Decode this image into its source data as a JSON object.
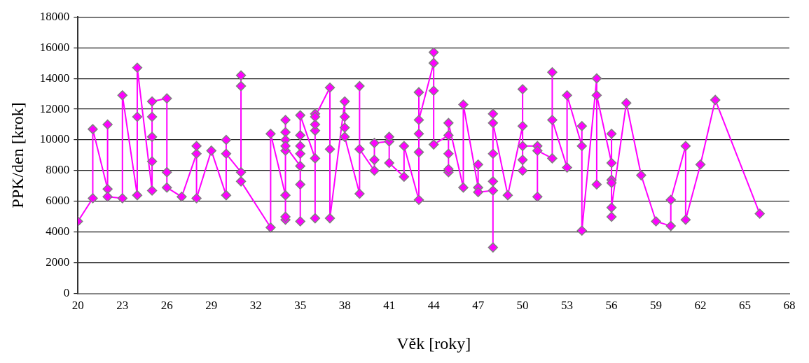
{
  "chart_data": {
    "type": "line",
    "xlabel": "Věk [roky]",
    "ylabel": "PPK/den [krok]",
    "xlim": [
      20,
      68
    ],
    "xticks": [
      20,
      23,
      26,
      29,
      32,
      35,
      38,
      41,
      44,
      47,
      50,
      53,
      56,
      59,
      62,
      65,
      68
    ],
    "ylim": [
      0,
      18000
    ],
    "yticks": [
      0,
      2000,
      4000,
      6000,
      8000,
      10000,
      12000,
      14000,
      16000,
      18000
    ],
    "grid": "y",
    "legend": false,
    "marker": "diamond",
    "line_style": "solid",
    "series": [
      {
        "color": "#ff00ff",
        "x": [
          20,
          21,
          21,
          22,
          22,
          22,
          23,
          23,
          24,
          24,
          24,
          25,
          25,
          25,
          25,
          25,
          26,
          26,
          26,
          27,
          28,
          28,
          28,
          29,
          30,
          30,
          30,
          31,
          31,
          31,
          31,
          33,
          33,
          34,
          34,
          34,
          34,
          34,
          34,
          34,
          34,
          35,
          35,
          35,
          35,
          35,
          35,
          35,
          36,
          36,
          36,
          36,
          36,
          36,
          37,
          37,
          37,
          38,
          38,
          38,
          38,
          39,
          39,
          39,
          40,
          40,
          40,
          41,
          41,
          41,
          42,
          42,
          43,
          43,
          43,
          43,
          43,
          44,
          44,
          44,
          44,
          45,
          45,
          45,
          45,
          45,
          46,
          46,
          47,
          47,
          47,
          48,
          48,
          48,
          48,
          48,
          48,
          49,
          50,
          50,
          50,
          50,
          50,
          51,
          51,
          51,
          52,
          52,
          52,
          53,
          53,
          54,
          54,
          54,
          55,
          55,
          55,
          56,
          56,
          56,
          56,
          56,
          56,
          57,
          58,
          59,
          60,
          60,
          61,
          61,
          62,
          63,
          66
        ],
        "values": [
          4700,
          6200,
          10700,
          6800,
          11000,
          6300,
          6200,
          12900,
          6400,
          11500,
          14700,
          6700,
          8600,
          10200,
          11500,
          12500,
          12700,
          7900,
          6900,
          6300,
          9100,
          9600,
          6200,
          9300,
          6400,
          10000,
          9100,
          7900,
          14200,
          13500,
          7300,
          4300,
          10400,
          6400,
          4800,
          5000,
          11300,
          10500,
          10000,
          9300,
          9600,
          8300,
          4700,
          7100,
          9100,
          9600,
          10300,
          11600,
          8800,
          4900,
          10600,
          11000,
          11700,
          11500,
          13400,
          9400,
          4900,
          12500,
          11500,
          10800,
          10200,
          6500,
          13500,
          9400,
          8000,
          8700,
          9800,
          9900,
          10200,
          8500,
          7600,
          9600,
          6100,
          9200,
          10400,
          13100,
          11300,
          15000,
          15700,
          13200,
          9700,
          10300,
          7900,
          8100,
          9100,
          11100,
          6900,
          12300,
          6900,
          8400,
          6600,
          6700,
          3000,
          7300,
          9100,
          11700,
          11100,
          6400,
          10900,
          13300,
          8000,
          8700,
          9600,
          9600,
          6300,
          9300,
          8800,
          14400,
          11300,
          8200,
          12900,
          9600,
          10900,
          4100,
          14000,
          7100,
          12900,
          8500,
          10400,
          7400,
          7200,
          5000,
          5600,
          12400,
          7700,
          4700,
          4400,
          6100,
          9600,
          4800,
          8400,
          12600,
          5200
        ]
      }
    ]
  }
}
